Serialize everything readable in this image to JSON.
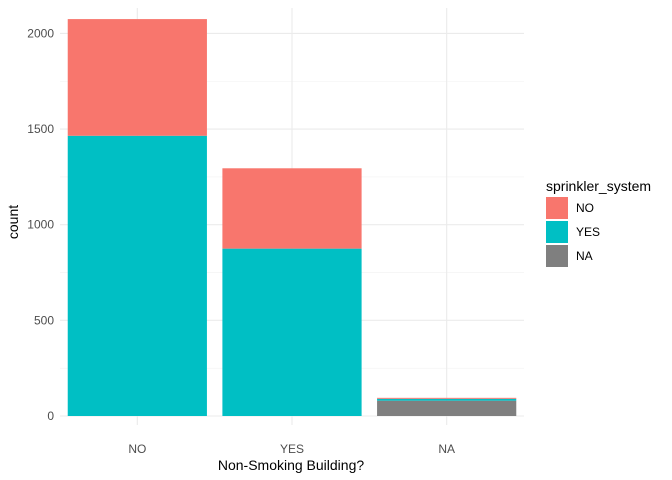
{
  "chart_data": {
    "type": "bar",
    "stacked": true,
    "title": "",
    "xlabel": "Non-Smoking Building?",
    "ylabel": "count",
    "categories": [
      "NO",
      "YES",
      "NA"
    ],
    "ylim": [
      0,
      2180
    ],
    "yticks": [
      0,
      500,
      1000,
      1500,
      2000
    ],
    "yticklabels": [
      "0",
      "500",
      "1000",
      "1500",
      "2000"
    ],
    "grid": true,
    "legend": {
      "title": "sprinkler_system",
      "position": "right",
      "entries": [
        "NO",
        "YES",
        "NA"
      ]
    },
    "series": [
      {
        "name": "YES",
        "color": "#00BFC4",
        "values": [
          1465,
          875,
          10
        ]
      },
      {
        "name": "NO",
        "color": "#F8766D",
        "values": [
          610,
          420,
          5
        ]
      },
      {
        "name": "NA",
        "color": "#7F7F7F",
        "values": [
          0,
          0,
          80
        ]
      }
    ],
    "stack_order_bottom_to_top": [
      "NA",
      "YES",
      "NO"
    ]
  }
}
